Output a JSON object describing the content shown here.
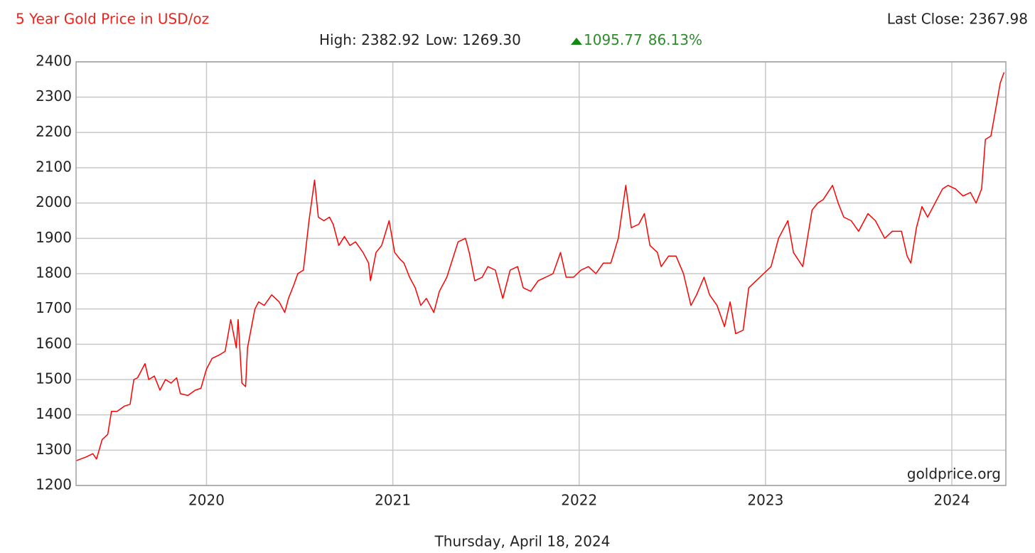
{
  "chart_data": {
    "type": "line",
    "title": "5 Year Gold Price in USD/oz",
    "last_close": "Last Close: 2367.98",
    "summary": {
      "high": "High: 2382.92",
      "low": "Low: 1269.30",
      "change": "1095.77",
      "change_pct": "86.13%"
    },
    "watermark": "goldprice.org",
    "date": "Thursday, April 18, 2024",
    "xlim": [
      2019.3,
      2024.29
    ],
    "xticks": [
      2020,
      2021,
      2022,
      2023,
      2024
    ],
    "ylim": [
      1200,
      2400
    ],
    "yticks": [
      1200,
      1300,
      1400,
      1500,
      1600,
      1700,
      1800,
      1900,
      2000,
      2100,
      2200,
      2300,
      2400
    ],
    "grid": true,
    "series": [
      {
        "name": "Gold",
        "color": "#ff0000",
        "x": [
          2019.3,
          2019.35,
          2019.39,
          2019.41,
          2019.44,
          2019.47,
          2019.49,
          2019.52,
          2019.56,
          2019.59,
          2019.61,
          2019.63,
          2019.67,
          2019.69,
          2019.72,
          2019.75,
          2019.78,
          2019.81,
          2019.84,
          2019.86,
          2019.9,
          2019.94,
          2019.97,
          2020.0,
          2020.03,
          2020.07,
          2020.1,
          2020.13,
          2020.16,
          2020.17,
          2020.19,
          2020.21,
          2020.22,
          2020.26,
          2020.28,
          2020.31,
          2020.35,
          2020.39,
          2020.42,
          2020.44,
          2020.47,
          2020.49,
          2020.52,
          2020.55,
          2020.58,
          2020.6,
          2020.63,
          2020.66,
          2020.68,
          2020.71,
          2020.74,
          2020.77,
          2020.8,
          2020.84,
          2020.87,
          2020.88,
          2020.91,
          2020.94,
          2020.98,
          2021.01,
          2021.04,
          2021.06,
          2021.09,
          2021.12,
          2021.15,
          2021.18,
          2021.22,
          2021.25,
          2021.29,
          2021.32,
          2021.35,
          2021.39,
          2021.41,
          2021.44,
          2021.48,
          2021.51,
          2021.55,
          2021.59,
          2021.63,
          2021.67,
          2021.7,
          2021.74,
          2021.78,
          2021.82,
          2021.86,
          2021.9,
          2021.93,
          2021.97,
          2022.01,
          2022.05,
          2022.09,
          2022.13,
          2022.17,
          2022.21,
          2022.25,
          2022.28,
          2022.32,
          2022.35,
          2022.38,
          2022.42,
          2022.44,
          2022.48,
          2022.52,
          2022.56,
          2022.6,
          2022.63,
          2022.67,
          2022.7,
          2022.74,
          2022.78,
          2022.81,
          2022.84,
          2022.88,
          2022.91,
          2022.95,
          2022.99,
          2023.03,
          2023.07,
          2023.12,
          2023.15,
          2023.2,
          2023.25,
          2023.28,
          2023.31,
          2023.36,
          2023.39,
          2023.42,
          2023.46,
          2023.5,
          2023.55,
          2023.59,
          2023.64,
          2023.68,
          2023.73,
          2023.76,
          2023.78,
          2023.81,
          2023.84,
          2023.87,
          2023.91,
          2023.95,
          2023.98,
          2024.02,
          2024.06,
          2024.1,
          2024.13,
          2024.16,
          2024.18,
          2024.21,
          2024.24,
          2024.26,
          2024.28
        ],
        "values": [
          1270,
          1280,
          1290,
          1275,
          1330,
          1345,
          1410,
          1410,
          1425,
          1430,
          1500,
          1505,
          1545,
          1500,
          1510,
          1470,
          1500,
          1490,
          1505,
          1460,
          1455,
          1470,
          1475,
          1530,
          1560,
          1570,
          1580,
          1670,
          1590,
          1670,
          1490,
          1480,
          1590,
          1700,
          1720,
          1710,
          1740,
          1720,
          1690,
          1730,
          1770,
          1800,
          1810,
          1950,
          2065,
          1960,
          1950,
          1960,
          1940,
          1880,
          1905,
          1880,
          1890,
          1860,
          1830,
          1780,
          1860,
          1880,
          1950,
          1860,
          1840,
          1830,
          1790,
          1760,
          1710,
          1730,
          1690,
          1750,
          1790,
          1840,
          1890,
          1900,
          1860,
          1780,
          1790,
          1820,
          1810,
          1730,
          1810,
          1820,
          1760,
          1750,
          1780,
          1790,
          1800,
          1860,
          1790,
          1790,
          1810,
          1820,
          1800,
          1830,
          1830,
          1900,
          2050,
          1930,
          1940,
          1970,
          1880,
          1860,
          1820,
          1850,
          1850,
          1800,
          1710,
          1740,
          1790,
          1740,
          1710,
          1650,
          1720,
          1630,
          1640,
          1760,
          1780,
          1800,
          1820,
          1900,
          1950,
          1860,
          1820,
          1980,
          2000,
          2010,
          2050,
          2000,
          1960,
          1950,
          1920,
          1970,
          1950,
          1900,
          1920,
          1920,
          1850,
          1830,
          1930,
          1990,
          1960,
          2000,
          2040,
          2050,
          2040,
          2020,
          2030,
          2000,
          2040,
          2180,
          2190,
          2280,
          2340,
          2370
        ]
      }
    ]
  }
}
